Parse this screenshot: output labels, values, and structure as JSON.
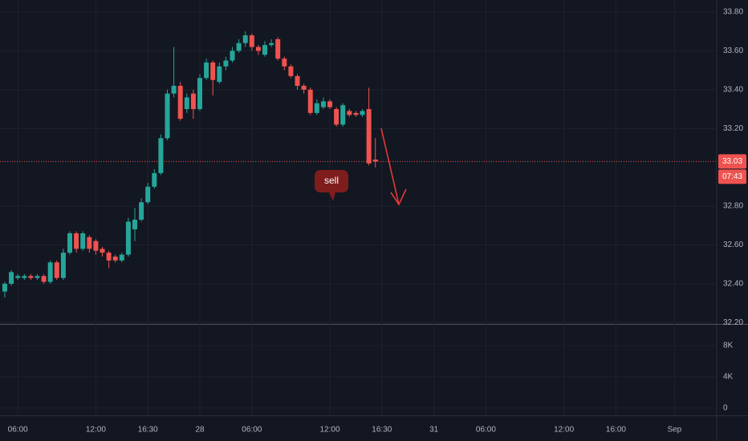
{
  "chart_data": {
    "type": "candlestick",
    "up_color": "#26a69a",
    "down_color": "#ef5350",
    "open": [
      32.36,
      32.4,
      32.43,
      32.43,
      32.44,
      32.43,
      32.44,
      32.41,
      32.51,
      32.43,
      32.56,
      32.66,
      32.58,
      32.64,
      32.62,
      32.58,
      32.56,
      32.54,
      32.52,
      32.55,
      32.68,
      32.73,
      32.82,
      32.9,
      32.97,
      33.15,
      33.38,
      33.42,
      33.3,
      33.38,
      33.3,
      33.46,
      33.54,
      33.44,
      33.52,
      33.55,
      33.6,
      33.64,
      33.68,
      33.62,
      33.58,
      33.63,
      33.66,
      33.56,
      33.52,
      33.47,
      33.42,
      33.4,
      33.28,
      33.31,
      33.34,
      33.3,
      33.22,
      33.29,
      33.28,
      33.27,
      33.3,
      33.04
    ],
    "high": [
      32.41,
      32.47,
      32.45,
      32.45,
      32.45,
      32.45,
      32.45,
      32.52,
      32.52,
      32.58,
      32.67,
      32.67,
      32.67,
      32.65,
      32.63,
      32.59,
      32.57,
      32.55,
      32.56,
      32.74,
      32.79,
      32.84,
      32.92,
      32.99,
      33.17,
      33.4,
      33.62,
      33.44,
      33.38,
      33.4,
      33.48,
      33.56,
      33.55,
      33.54,
      33.57,
      33.62,
      33.66,
      33.7,
      33.69,
      33.63,
      33.65,
      33.66,
      33.67,
      33.57,
      33.53,
      33.48,
      33.43,
      33.41,
      33.35,
      33.36,
      33.35,
      33.31,
      33.33,
      33.3,
      33.29,
      33.3,
      33.41,
      33.15
    ],
    "low": [
      32.33,
      32.39,
      32.42,
      32.42,
      32.42,
      32.42,
      32.4,
      32.4,
      32.42,
      32.42,
      32.55,
      32.56,
      32.57,
      32.56,
      32.55,
      32.54,
      32.48,
      32.51,
      32.51,
      32.54,
      32.62,
      32.72,
      32.81,
      32.89,
      32.96,
      33.14,
      33.36,
      33.24,
      33.28,
      33.25,
      33.29,
      33.45,
      33.37,
      33.43,
      33.5,
      33.54,
      33.59,
      33.62,
      33.6,
      33.58,
      33.57,
      33.62,
      33.55,
      33.5,
      33.46,
      33.4,
      33.38,
      33.27,
      33.27,
      33.3,
      33.3,
      33.21,
      33.21,
      33.26,
      33.26,
      33.26,
      33.01,
      33.0
    ],
    "close": [
      32.4,
      32.46,
      32.44,
      32.44,
      32.43,
      32.44,
      32.41,
      32.51,
      32.43,
      32.56,
      32.66,
      32.58,
      32.66,
      32.58,
      32.57,
      32.56,
      32.52,
      32.52,
      32.55,
      32.72,
      32.73,
      32.82,
      32.9,
      32.97,
      33.15,
      33.38,
      33.42,
      33.25,
      33.36,
      33.3,
      33.46,
      33.54,
      33.45,
      33.52,
      33.55,
      33.6,
      33.64,
      33.68,
      33.62,
      33.6,
      33.63,
      33.64,
      33.56,
      33.52,
      33.47,
      33.42,
      33.4,
      33.28,
      33.33,
      33.34,
      33.31,
      33.22,
      33.32,
      33.27,
      33.27,
      33.29,
      33.02,
      33.03
    ],
    "xlim": [
      -0.74,
      109.5
    ],
    "xticks": [
      {
        "value": 2,
        "label": "06:00"
      },
      {
        "value": 14,
        "label": "12:00"
      },
      {
        "value": 22,
        "label": "16:30"
      },
      {
        "value": 30,
        "label": "28"
      },
      {
        "value": 38,
        "label": "06:00"
      },
      {
        "value": 50,
        "label": "12:00"
      },
      {
        "value": 58,
        "label": "16:30"
      },
      {
        "value": 66,
        "label": "31"
      },
      {
        "value": 74,
        "label": "06:00"
      },
      {
        "value": 86,
        "label": "12:00"
      },
      {
        "value": 94,
        "label": "16:00"
      },
      {
        "value": 103,
        "label": "Sep"
      }
    ],
    "ylim": [
      32.193,
      33.862
    ],
    "yticks": [
      {
        "value": 32.2,
        "label": "32.20"
      },
      {
        "value": 32.4,
        "label": "32.40"
      },
      {
        "value": 32.6,
        "label": "32.60"
      },
      {
        "value": 32.8,
        "label": "32.80"
      },
      {
        "value": 33.2,
        "label": "33.20"
      },
      {
        "value": 33.4,
        "label": "33.40"
      },
      {
        "value": 33.6,
        "label": "33.60"
      },
      {
        "value": 33.8,
        "label": "33.80"
      }
    ],
    "y2lim": [
      -920,
      10670
    ],
    "y2ticks": [
      0,
      {
        "value": 4000,
        "label": "4K"
      },
      {
        "value": 8000,
        "label": "8K"
      }
    ],
    "last_price": {
      "value": 33.03,
      "label": "33.03"
    },
    "countdown": "07:43",
    "annotation": "sell"
  }
}
